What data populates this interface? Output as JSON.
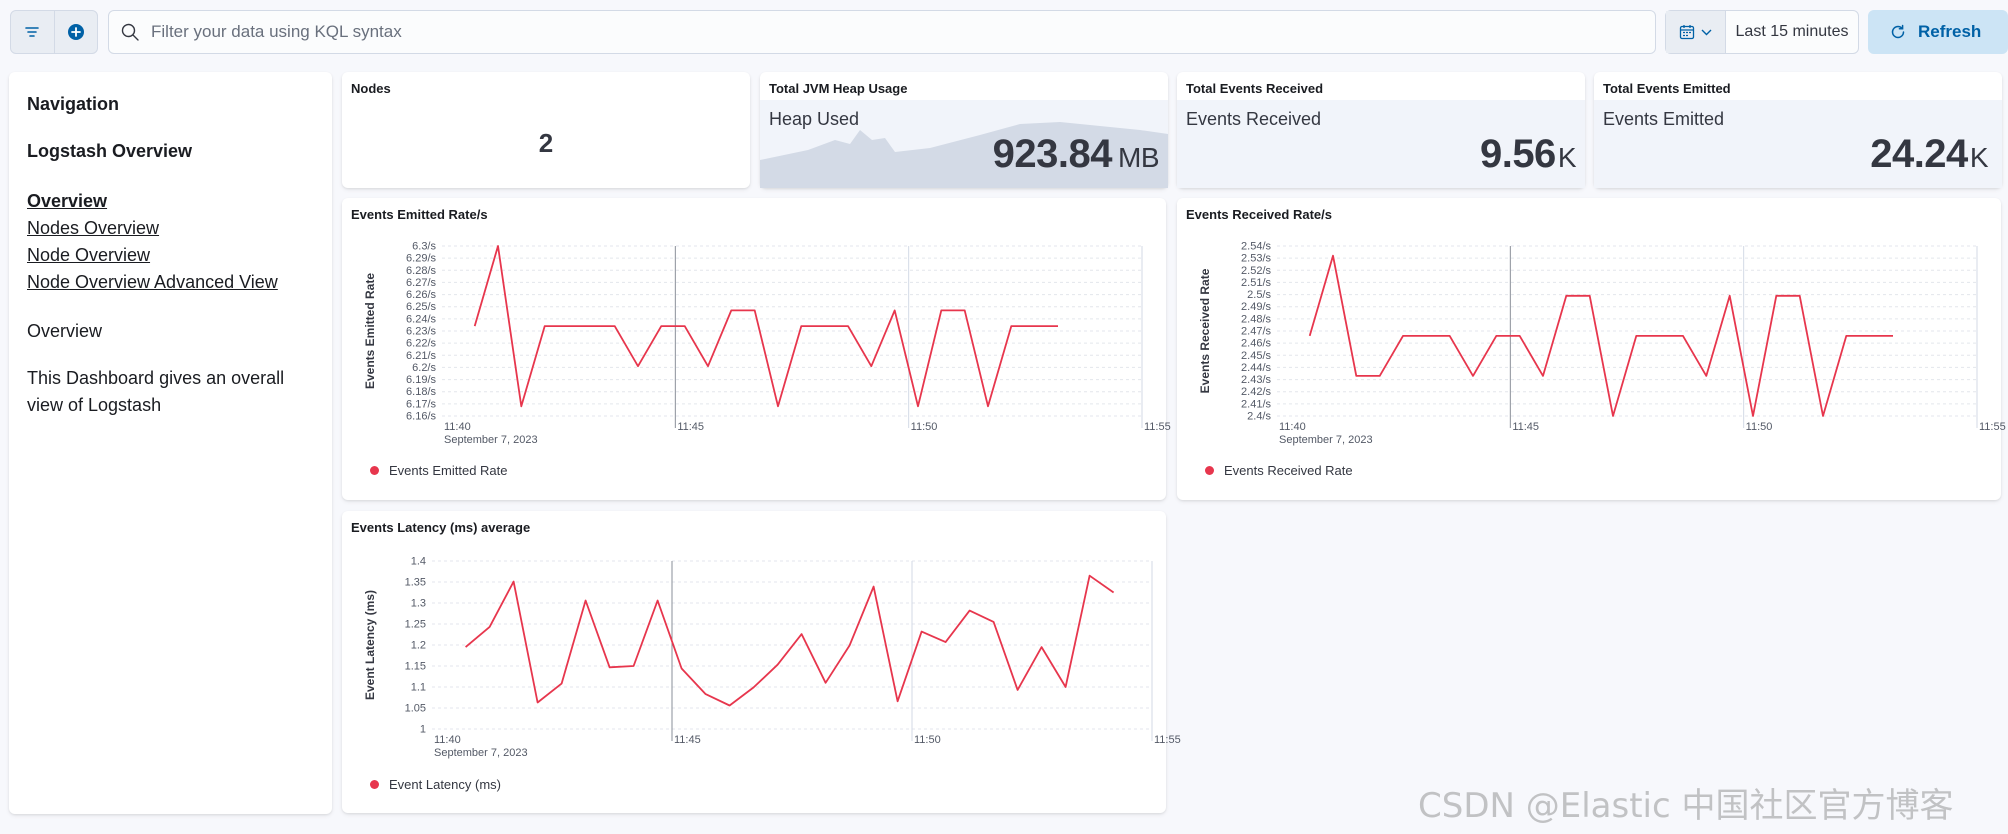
{
  "query_bar": {
    "placeholder": "Filter your data using KQL syntax",
    "date_range": "Last 15 minutes",
    "refresh_label": "Refresh"
  },
  "navigation": {
    "title": "Navigation",
    "subtitle": "Logstash Overview",
    "links": [
      {
        "label": "Overview",
        "current": true
      },
      {
        "label": "Nodes Overview",
        "current": false
      },
      {
        "label": "Node Overview",
        "current": false
      },
      {
        "label": "Node Overview Advanced View",
        "current": false
      }
    ],
    "section_heading": "Overview",
    "description": "This Dashboard gives an overall view of Logstash"
  },
  "metrics": {
    "nodes": {
      "title": "Nodes",
      "value": "2"
    },
    "heap": {
      "title": "Total JVM Heap Usage",
      "label": "Heap Used",
      "value": "923.84",
      "unit": "MB"
    },
    "received": {
      "title": "Total Events Received",
      "label": "Events Received",
      "value": "9.56",
      "unit": "K"
    },
    "emitted": {
      "title": "Total Events Emitted",
      "label": "Events Emitted",
      "value": "24.24",
      "unit": "K"
    }
  },
  "colors": {
    "series": "#e7364d",
    "accent": "#0061a6"
  },
  "chart_data": [
    {
      "id": "emitted-rate",
      "type": "line",
      "title": "Events Emitted Rate/s",
      "ylabel": "Events Emitted Rate",
      "legend": "Events Emitted Rate",
      "yticks": [
        "6.16/s",
        "6.17/s",
        "6.18/s",
        "6.19/s",
        "6.2/s",
        "6.21/s",
        "6.22/s",
        "6.23/s",
        "6.24/s",
        "6.25/s",
        "6.26/s",
        "6.27/s",
        "6.28/s",
        "6.29/s",
        "6.3/s"
      ],
      "ylim": [
        6.16,
        6.3
      ],
      "xticks": [
        {
          "t": 0,
          "label": "11:40",
          "sub": "September 7, 2023"
        },
        {
          "t": 5,
          "label": "11:45"
        },
        {
          "t": 10,
          "label": "11:50"
        },
        {
          "t": 15,
          "label": "11:55"
        }
      ],
      "xlim": [
        0,
        15
      ],
      "points": [
        [
          0.7,
          6.234
        ],
        [
          1.2,
          6.3
        ],
        [
          1.7,
          6.168
        ],
        [
          2.2,
          6.234
        ],
        [
          2.7,
          6.234
        ],
        [
          3.7,
          6.234
        ],
        [
          4.2,
          6.201
        ],
        [
          4.7,
          6.234
        ],
        [
          5.2,
          6.234
        ],
        [
          5.7,
          6.201
        ],
        [
          6.2,
          6.247
        ],
        [
          6.7,
          6.247
        ],
        [
          7.2,
          6.168
        ],
        [
          7.7,
          6.234
        ],
        [
          8.7,
          6.234
        ],
        [
          9.2,
          6.201
        ],
        [
          9.7,
          6.247
        ],
        [
          10.2,
          6.168
        ],
        [
          10.7,
          6.247
        ],
        [
          11.2,
          6.247
        ],
        [
          11.7,
          6.168
        ],
        [
          12.2,
          6.234
        ],
        [
          13.2,
          6.234
        ]
      ]
    },
    {
      "id": "received-rate",
      "type": "line",
      "title": "Events Received Rate/s",
      "ylabel": "Events Received Rate",
      "legend": "Events Received Rate",
      "yticks": [
        "2.4/s",
        "2.41/s",
        "2.42/s",
        "2.43/s",
        "2.44/s",
        "2.45/s",
        "2.46/s",
        "2.47/s",
        "2.48/s",
        "2.49/s",
        "2.5/s",
        "2.51/s",
        "2.52/s",
        "2.53/s",
        "2.54/s"
      ],
      "ylim": [
        2.4,
        2.54
      ],
      "xticks": [
        {
          "t": 0,
          "label": "11:40",
          "sub": "September 7, 2023"
        },
        {
          "t": 5,
          "label": "11:45"
        },
        {
          "t": 10,
          "label": "11:50"
        },
        {
          "t": 15,
          "label": "11:55"
        }
      ],
      "xlim": [
        0,
        15
      ],
      "points": [
        [
          0.7,
          2.466
        ],
        [
          1.2,
          2.532
        ],
        [
          1.7,
          2.433
        ],
        [
          2.2,
          2.433
        ],
        [
          2.7,
          2.466
        ],
        [
          3.7,
          2.466
        ],
        [
          4.2,
          2.433
        ],
        [
          4.7,
          2.466
        ],
        [
          5.2,
          2.466
        ],
        [
          5.7,
          2.433
        ],
        [
          6.2,
          2.499
        ],
        [
          6.7,
          2.499
        ],
        [
          7.2,
          2.4
        ],
        [
          7.7,
          2.466
        ],
        [
          8.7,
          2.466
        ],
        [
          9.2,
          2.433
        ],
        [
          9.7,
          2.499
        ],
        [
          10.2,
          2.4
        ],
        [
          10.7,
          2.499
        ],
        [
          11.2,
          2.499
        ],
        [
          11.7,
          2.4
        ],
        [
          12.2,
          2.466
        ],
        [
          13.2,
          2.466
        ]
      ]
    },
    {
      "id": "latency",
      "type": "line",
      "title": "Events Latency (ms) average",
      "ylabel": "Event Latency (ms)",
      "legend": "Event Latency (ms)",
      "yticks": [
        "1",
        "1.05",
        "1.1",
        "1.15",
        "1.2",
        "1.25",
        "1.3",
        "1.35",
        "1.4"
      ],
      "ylim": [
        1.0,
        1.4
      ],
      "xticks": [
        {
          "t": 0,
          "label": "11:40",
          "sub": "September 7, 2023"
        },
        {
          "t": 5,
          "label": "11:45"
        },
        {
          "t": 10,
          "label": "11:50"
        },
        {
          "t": 15,
          "label": "11:55"
        }
      ],
      "xlim": [
        0,
        15
      ],
      "points": [
        [
          0.7,
          1.195
        ],
        [
          1.2,
          1.243
        ],
        [
          1.7,
          1.351
        ],
        [
          2.2,
          1.063
        ],
        [
          2.7,
          1.108
        ],
        [
          3.2,
          1.306
        ],
        [
          3.7,
          1.147
        ],
        [
          4.2,
          1.15
        ],
        [
          4.7,
          1.306
        ],
        [
          5.2,
          1.144
        ],
        [
          5.7,
          1.083
        ],
        [
          6.2,
          1.056
        ],
        [
          6.7,
          1.099
        ],
        [
          7.2,
          1.153
        ],
        [
          7.7,
          1.226
        ],
        [
          8.2,
          1.11
        ],
        [
          8.7,
          1.199
        ],
        [
          9.2,
          1.339
        ],
        [
          9.7,
          1.066
        ],
        [
          10.2,
          1.232
        ],
        [
          10.7,
          1.207
        ],
        [
          11.2,
          1.282
        ],
        [
          11.7,
          1.255
        ],
        [
          12.2,
          1.093
        ],
        [
          12.7,
          1.195
        ],
        [
          13.2,
          1.1
        ],
        [
          13.7,
          1.365
        ],
        [
          14.2,
          1.325
        ]
      ]
    }
  ]
}
